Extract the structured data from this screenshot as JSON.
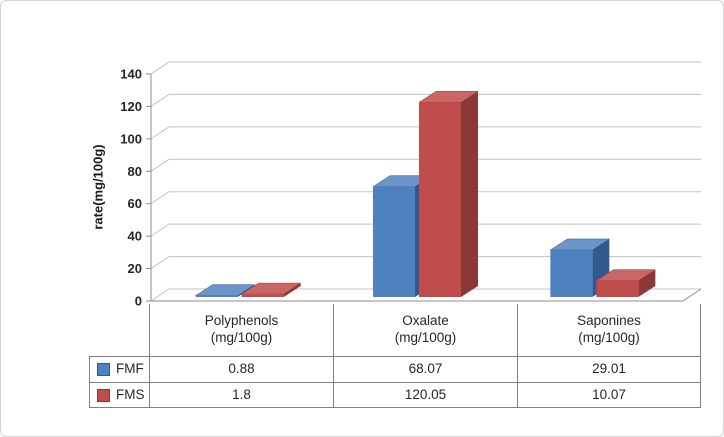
{
  "chart_data": {
    "type": "bar",
    "style": "3d-clustered-column",
    "title": "",
    "ylabel": "rate(mg/100g)",
    "categories": [
      "Polyphenols",
      "Oxalate",
      "Saponines"
    ],
    "category_unit": "(mg/100g)",
    "series": [
      {
        "name": "FMF",
        "color": "#4E81BD",
        "color_top": "#6B94C9",
        "color_side": "#30598E",
        "values": [
          0.88,
          68.07,
          29.01
        ]
      },
      {
        "name": "FMS",
        "color": "#BF4D4B",
        "color_top": "#CA6764",
        "color_side": "#8C3836",
        "values": [
          1.8,
          120.05,
          10.07
        ]
      }
    ],
    "ylim": [
      0,
      140
    ],
    "ytick_step": 20,
    "yticks": [
      0,
      20,
      40,
      60,
      80,
      100,
      120,
      140
    ],
    "grid": true,
    "legend_position": "table-left"
  },
  "colors": {
    "grid": "#C3C3C3",
    "axis": "#8C8C8C",
    "tick_text": "#262626",
    "table_border": "#808080",
    "table_text": "#262626",
    "frame_border": "#D4D4D4"
  }
}
